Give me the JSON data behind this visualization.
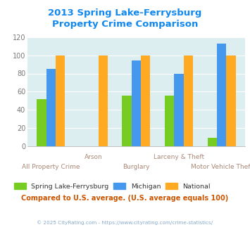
{
  "title_line1": "2013 Spring Lake-Ferrysburg",
  "title_line2": "Property Crime Comparison",
  "categories": [
    "All Property Crime",
    "Arson",
    "Burglary",
    "Larceny & Theft",
    "Motor Vehicle Theft"
  ],
  "series": {
    "Spring Lake-Ferrysburg": [
      52,
      0,
      56,
      56,
      9
    ],
    "Michigan": [
      85,
      0,
      94,
      80,
      113
    ],
    "National": [
      100,
      100,
      100,
      100,
      100
    ]
  },
  "colors": {
    "Spring Lake-Ferrysburg": "#77cc22",
    "Michigan": "#4499ee",
    "National": "#ffaa22"
  },
  "ylim": [
    0,
    120
  ],
  "yticks": [
    0,
    20,
    40,
    60,
    80,
    100,
    120
  ],
  "xlabel_color": "#aa8877",
  "background_color": "#ddeef0",
  "title_color": "#1188ee",
  "footnote": "Compared to U.S. average. (U.S. average equals 100)",
  "copyright": "© 2025 CityRating.com - https://www.cityrating.com/crime-statistics/",
  "legend_labels": [
    "Spring Lake-Ferrysburg",
    "Michigan",
    "National"
  ],
  "bar_width": 0.22
}
